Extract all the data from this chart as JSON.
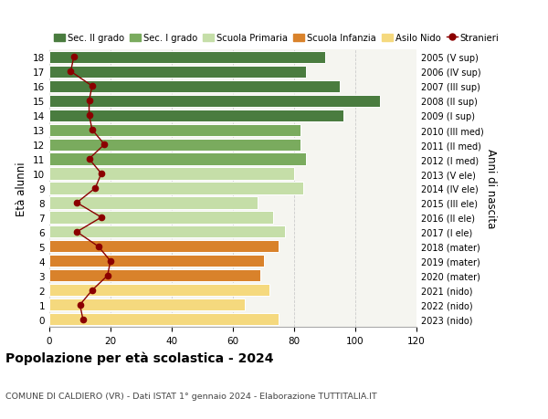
{
  "ages": [
    18,
    17,
    16,
    15,
    14,
    13,
    12,
    11,
    10,
    9,
    8,
    7,
    6,
    5,
    4,
    3,
    2,
    1,
    0
  ],
  "right_labels": [
    "2005 (V sup)",
    "2006 (IV sup)",
    "2007 (III sup)",
    "2008 (II sup)",
    "2009 (I sup)",
    "2010 (III med)",
    "2011 (II med)",
    "2012 (I med)",
    "2013 (V ele)",
    "2014 (IV ele)",
    "2015 (III ele)",
    "2016 (II ele)",
    "2017 (I ele)",
    "2018 (mater)",
    "2019 (mater)",
    "2020 (mater)",
    "2021 (nido)",
    "2022 (nido)",
    "2023 (nido)"
  ],
  "bar_values": [
    90,
    84,
    95,
    108,
    96,
    82,
    82,
    84,
    80,
    83,
    68,
    73,
    77,
    75,
    70,
    69,
    72,
    64,
    75
  ],
  "bar_colors": [
    "#4a7c3f",
    "#4a7c3f",
    "#4a7c3f",
    "#4a7c3f",
    "#4a7c3f",
    "#7aab5e",
    "#7aab5e",
    "#7aab5e",
    "#c5dea8",
    "#c5dea8",
    "#c5dea8",
    "#c5dea8",
    "#c5dea8",
    "#d9822b",
    "#d9822b",
    "#d9822b",
    "#f5d97e",
    "#f5d97e",
    "#f5d97e"
  ],
  "stranieri_values": [
    8,
    7,
    14,
    13,
    13,
    14,
    18,
    13,
    17,
    15,
    9,
    17,
    9,
    16,
    20,
    19,
    14,
    10,
    11
  ],
  "stranieri_color": "#8b0000",
  "legend_items": [
    {
      "label": "Sec. II grado",
      "color": "#4a7c3f"
    },
    {
      "label": "Sec. I grado",
      "color": "#7aab5e"
    },
    {
      "label": "Scuola Primaria",
      "color": "#c5dea8"
    },
    {
      "label": "Scuola Infanzia",
      "color": "#d9822b"
    },
    {
      "label": "Asilo Nido",
      "color": "#f5d97e"
    },
    {
      "label": "Stranieri",
      "color": "#8b0000"
    }
  ],
  "ylabel": "Età alunni",
  "right_ylabel": "Anni di nascita",
  "title": "Popolazione per età scolastica - 2024",
  "subtitle": "COMUNE DI CALDIERO (VR) - Dati ISTAT 1° gennaio 2024 - Elaborazione TUTTITALIA.IT",
  "xlim": [
    0,
    120
  ],
  "xticks": [
    0,
    20,
    40,
    60,
    80,
    100,
    120
  ],
  "background_color": "#ffffff",
  "plot_bg_color": "#f5f5f0",
  "grid_color": "#cccccc"
}
